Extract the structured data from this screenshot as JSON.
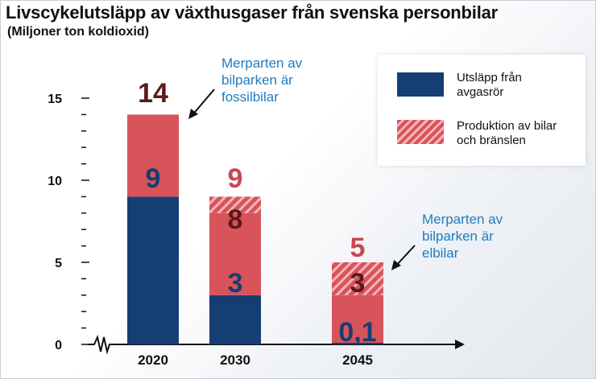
{
  "title": "Livscykelutsläpp av växthusgaser från svenska personbilar",
  "subtitle": "(Miljoner ton koldioxid)",
  "legend": {
    "exhaust": "Utsläpp från avgasrör",
    "production": "Produktion av bilar och bränslen"
  },
  "annotations": {
    "fossil": "Merparten av bilparken är fossilbilar",
    "electric": "Merparten av bilparken är elbilar"
  },
  "colors": {
    "exhaust": "#153e74",
    "production": "#d9535b",
    "production_hatch": "#f2b6b9",
    "label_dark": "#5b1a1c",
    "label_light": "#c8474f",
    "annotation": "#1f7cc0"
  },
  "chart_data": {
    "type": "bar",
    "stacked": true,
    "categories": [
      "2020",
      "2030",
      "2045"
    ],
    "series": [
      {
        "name": "Utsläpp från avgasrör",
        "values": [
          9,
          3,
          0.1
        ],
        "labels": [
          "9",
          "3",
          "0,1"
        ]
      },
      {
        "name": "Produktion av bilar och bränslen",
        "values": [
          5,
          5,
          2.9
        ],
        "labels": [
          "",
          "8",
          "3"
        ]
      },
      {
        "name": "Produktion av bilar och bränslen (streckad)",
        "values": [
          0,
          1,
          2
        ],
        "labels": [
          "",
          "",
          ""
        ]
      }
    ],
    "totals": [
      14,
      9,
      5
    ],
    "total_labels": [
      "14",
      "9",
      "5"
    ],
    "ylim": [
      0,
      15
    ],
    "yticks": [
      0,
      5,
      10,
      15
    ],
    "minor_tick_step": 1,
    "xlabel": "",
    "ylabel": "",
    "legend_position": "top-right"
  }
}
